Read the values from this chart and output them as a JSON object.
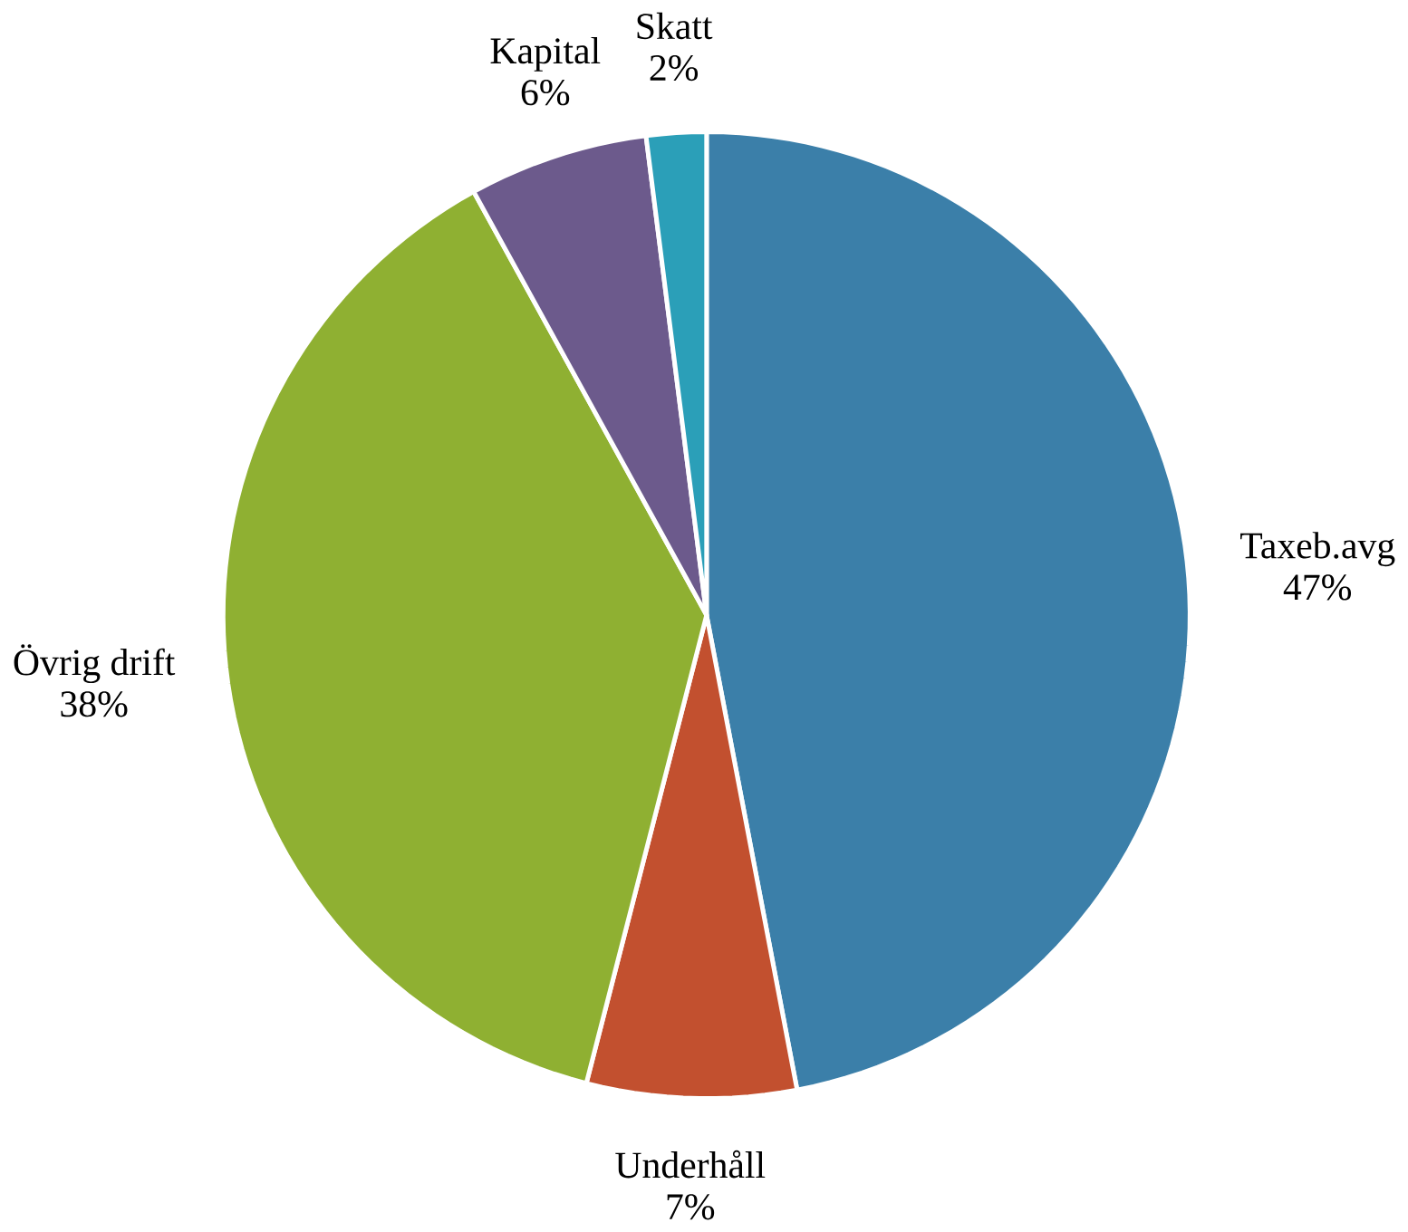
{
  "chart_data": {
    "type": "pie",
    "categories": [
      "Taxeb.avg",
      "Underhåll",
      "Övrig drift",
      "Kapital",
      "Skatt"
    ],
    "values": [
      47,
      7,
      38,
      6,
      2
    ],
    "value_labels": [
      "47%",
      "7%",
      "38%",
      "6%",
      "2%"
    ],
    "colors": [
      "#3b7fa9",
      "#c2502f",
      "#8fb032",
      "#6c5a8c",
      "#2b9fb8"
    ]
  }
}
